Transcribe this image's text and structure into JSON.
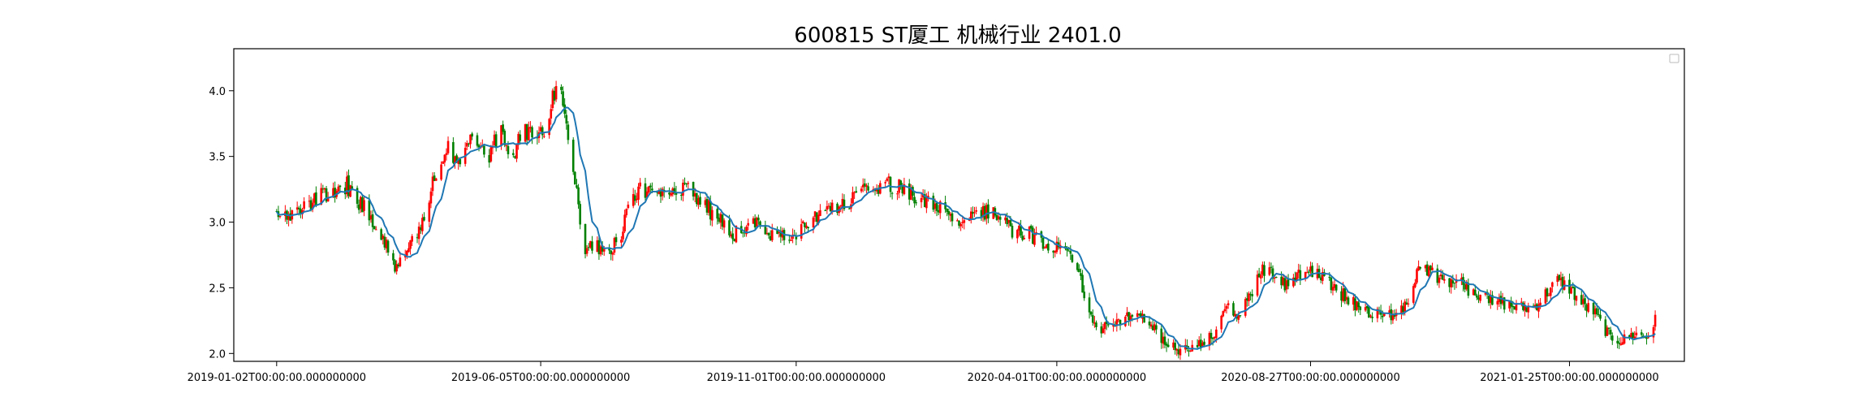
{
  "chart_data": {
    "type": "candlestick",
    "title": "600815 ST厦工 机械行业 2401.0",
    "xlabel": "",
    "ylabel": "",
    "ylim": [
      1.94,
      4.32
    ],
    "yticks": [
      {
        "value": 2.0,
        "label": "2.0"
      },
      {
        "value": 2.5,
        "label": "2.5"
      },
      {
        "value": 3.0,
        "label": "3.0"
      },
      {
        "value": 3.5,
        "label": "3.5"
      },
      {
        "value": 4.0,
        "label": "4.0"
      }
    ],
    "x_range": [
      "2018-12-08",
      "2021-04-02"
    ],
    "xticks": [
      {
        "date": "2019-01-02",
        "label": "2019-01-02T00:00:00.000000000"
      },
      {
        "date": "2019-06-05",
        "label": "2019-06-05T00:00:00.000000000"
      },
      {
        "date": "2019-11-01",
        "label": "2019-11-01T00:00:00.000000000"
      },
      {
        "date": "2020-04-01",
        "label": "2020-04-01T00:00:00.000000000"
      },
      {
        "date": "2020-08-27",
        "label": "2020-08-27T00:00:00.000000000"
      },
      {
        "date": "2021-01-25",
        "label": "2021-01-25T00:00:00.000000000"
      }
    ],
    "legend": "top-right",
    "grid": false,
    "colors": {
      "up": "#ff0000",
      "down": "#008000",
      "ma": "#1f77b4"
    },
    "price_path": [
      [
        "2019-01-02",
        3.03
      ],
      [
        "2019-01-15",
        3.08
      ],
      [
        "2019-01-25",
        3.18
      ],
      [
        "2019-02-12",
        3.28
      ],
      [
        "2019-02-22",
        3.1
      ],
      [
        "2019-03-05",
        2.88
      ],
      [
        "2019-03-12",
        2.62
      ],
      [
        "2019-03-20",
        2.78
      ],
      [
        "2019-03-28",
        3.0
      ],
      [
        "2019-04-03",
        3.3
      ],
      [
        "2019-04-10",
        3.58
      ],
      [
        "2019-04-18",
        3.45
      ],
      [
        "2019-04-26",
        3.62
      ],
      [
        "2019-05-06",
        3.5
      ],
      [
        "2019-05-13",
        3.7
      ],
      [
        "2019-05-20",
        3.52
      ],
      [
        "2019-05-27",
        3.72
      ],
      [
        "2019-06-03",
        3.6
      ],
      [
        "2019-06-10",
        3.8
      ],
      [
        "2019-06-14",
        4.05
      ],
      [
        "2019-06-20",
        3.8
      ],
      [
        "2019-06-26",
        3.2
      ],
      [
        "2019-07-01",
        2.8
      ],
      [
        "2019-07-10",
        2.8
      ],
      [
        "2019-07-20",
        2.82
      ],
      [
        "2019-07-25",
        3.05
      ],
      [
        "2019-08-01",
        3.28
      ],
      [
        "2019-08-12",
        3.18
      ],
      [
        "2019-08-22",
        3.22
      ],
      [
        "2019-08-30",
        3.25
      ],
      [
        "2019-09-06",
        3.15
      ],
      [
        "2019-09-16",
        3.05
      ],
      [
        "2019-09-25",
        2.9
      ],
      [
        "2019-10-08",
        3.0
      ],
      [
        "2019-10-15",
        2.92
      ],
      [
        "2019-10-25",
        2.92
      ],
      [
        "2019-11-01",
        2.92
      ],
      [
        "2019-11-12",
        3.05
      ],
      [
        "2019-11-22",
        3.1
      ],
      [
        "2019-12-02",
        3.12
      ],
      [
        "2019-12-10",
        3.32
      ],
      [
        "2019-12-18",
        3.2
      ],
      [
        "2019-12-26",
        3.3
      ],
      [
        "2020-01-06",
        3.2
      ],
      [
        "2020-01-16",
        3.15
      ],
      [
        "2020-02-06",
        3.0
      ],
      [
        "2020-02-14",
        3.05
      ],
      [
        "2020-02-24",
        3.1
      ],
      [
        "2020-03-05",
        2.95
      ],
      [
        "2020-03-12",
        2.92
      ],
      [
        "2020-03-20",
        2.88
      ],
      [
        "2020-03-30",
        2.8
      ],
      [
        "2020-04-08",
        2.75
      ],
      [
        "2020-04-15",
        2.55
      ],
      [
        "2020-04-22",
        2.2
      ],
      [
        "2020-04-30",
        2.2
      ],
      [
        "2020-05-11",
        2.28
      ],
      [
        "2020-05-20",
        2.3
      ],
      [
        "2020-05-28",
        2.18
      ],
      [
        "2020-06-05",
        2.05
      ],
      [
        "2020-06-15",
        2.02
      ],
      [
        "2020-06-24",
        2.08
      ],
      [
        "2020-07-02",
        2.15
      ],
      [
        "2020-07-09",
        2.35
      ],
      [
        "2020-07-16",
        2.28
      ],
      [
        "2020-07-23",
        2.45
      ],
      [
        "2020-07-30",
        2.62
      ],
      [
        "2020-08-06",
        2.6
      ],
      [
        "2020-08-13",
        2.52
      ],
      [
        "2020-08-20",
        2.6
      ],
      [
        "2020-08-27",
        2.65
      ],
      [
        "2020-09-04",
        2.55
      ],
      [
        "2020-09-11",
        2.5
      ],
      [
        "2020-09-18",
        2.4
      ],
      [
        "2020-09-25",
        2.35
      ],
      [
        "2020-10-09",
        2.28
      ],
      [
        "2020-10-16",
        2.3
      ],
      [
        "2020-10-23",
        2.42
      ],
      [
        "2020-10-30",
        2.7
      ],
      [
        "2020-11-06",
        2.6
      ],
      [
        "2020-11-16",
        2.55
      ],
      [
        "2020-11-24",
        2.52
      ],
      [
        "2020-12-02",
        2.45
      ],
      [
        "2020-12-10",
        2.4
      ],
      [
        "2020-12-18",
        2.38
      ],
      [
        "2020-12-25",
        2.35
      ],
      [
        "2021-01-04",
        2.35
      ],
      [
        "2021-01-11",
        2.45
      ],
      [
        "2021-01-18",
        2.55
      ],
      [
        "2021-01-25",
        2.5
      ],
      [
        "2021-02-01",
        2.38
      ],
      [
        "2021-02-08",
        2.32
      ],
      [
        "2021-02-18",
        2.12
      ],
      [
        "2021-02-25",
        2.1
      ],
      [
        "2021-03-04",
        2.15
      ],
      [
        "2021-03-11",
        2.12
      ],
      [
        "2021-03-16",
        2.25
      ]
    ]
  }
}
